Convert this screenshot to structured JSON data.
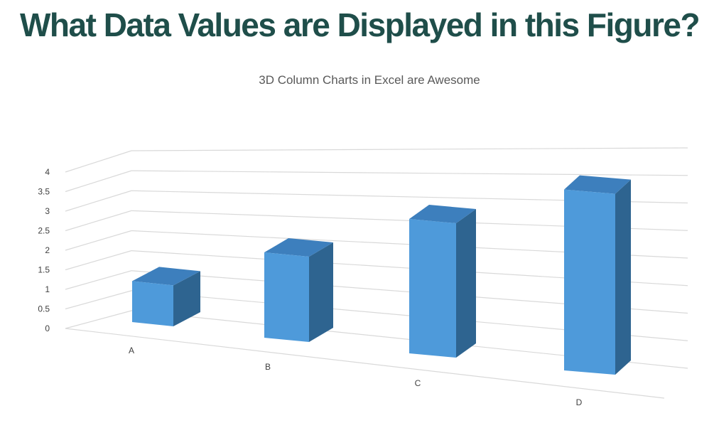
{
  "slide": {
    "title": "What Data Values are Displayed in this Figure?"
  },
  "colors": {
    "title": "#1f4e4a",
    "bar_front": "#4e9ada",
    "bar_side": "#2e6490",
    "bar_top": "#3d7fbd",
    "grid": "#d9d9d9"
  },
  "chart_data": {
    "type": "bar",
    "style": "3d-column",
    "title": "3D Column Charts in Excel are Awesome",
    "categories": [
      "A",
      "B",
      "C",
      "D"
    ],
    "values": [
      1,
      2,
      3,
      4
    ],
    "ylim": [
      0,
      4
    ],
    "yticks": [
      "0",
      "0.5",
      "1",
      "1.5",
      "2",
      "2.5",
      "3",
      "3.5",
      "4"
    ],
    "xlabel": "",
    "ylabel": "",
    "grid": true,
    "legend": "none"
  }
}
